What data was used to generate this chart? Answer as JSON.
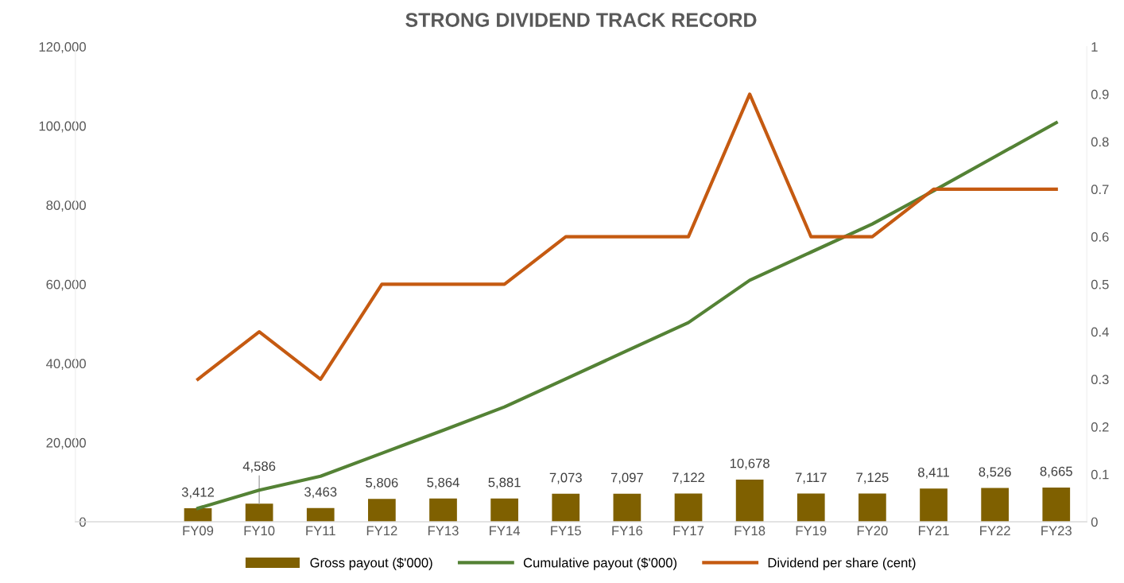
{
  "chart_data": {
    "type": "bar",
    "title": "STRONG DIVIDEND TRACK RECORD",
    "categories": [
      "FY09",
      "FY10",
      "FY11",
      "FY12",
      "FY13",
      "FY14",
      "FY15",
      "FY16",
      "FY17",
      "FY18",
      "FY19",
      "FY20",
      "FY21",
      "FY22",
      "FY23"
    ],
    "series": [
      {
        "name": "Gross payout ($'000)",
        "color": "#7f6000",
        "values": [
          3412,
          4586,
          3463,
          5806,
          5864,
          5881,
          7073,
          7097,
          7122,
          10678,
          7117,
          7125,
          8411,
          8526,
          8665
        ],
        "value_labels": [
          "3,412",
          "4,586",
          "3,463",
          "5,806",
          "5,864",
          "5,881",
          "7,073",
          "7,097",
          "7,122",
          "10,678",
          "7,117",
          "7,125",
          "8,411",
          "8,526",
          "8,665"
        ]
      },
      {
        "name": "Cumulative payout ($'000)",
        "type": "line",
        "color": "#548235",
        "values": [
          3400,
          8000,
          11500,
          17300,
          23100,
          29000,
          36100,
          43200,
          50300,
          61000,
          68100,
          75200,
          83600,
          92200,
          100800
        ]
      },
      {
        "name": "Dividend per share (cent)",
        "type": "line",
        "axis": "y2",
        "color": "#c55a11",
        "values": [
          0.3,
          0.4,
          0.3,
          0.5,
          0.5,
          0.5,
          0.6,
          0.6,
          0.6,
          0.9,
          0.6,
          0.6,
          0.7,
          0.7,
          0.7
        ]
      }
    ],
    "ylim": [
      0,
      120000
    ],
    "yticks": [
      {
        "value": 0,
        "label": "0"
      },
      {
        "value": 20000,
        "label": "20,000"
      },
      {
        "value": 40000,
        "label": "40,000"
      },
      {
        "value": 60000,
        "label": "60,000"
      },
      {
        "value": 80000,
        "label": "80,000"
      },
      {
        "value": 100000,
        "label": "100,000"
      },
      {
        "value": 120000,
        "label": "120,000"
      }
    ],
    "y2lim": [
      0,
      1
    ],
    "y2ticks": [
      0,
      0.1,
      0.2,
      0.3,
      0.4,
      0.5,
      0.6,
      0.7,
      0.8,
      0.9,
      1
    ],
    "legend": "bottom",
    "grid": false,
    "marker": "none",
    "line_style": "solid"
  }
}
